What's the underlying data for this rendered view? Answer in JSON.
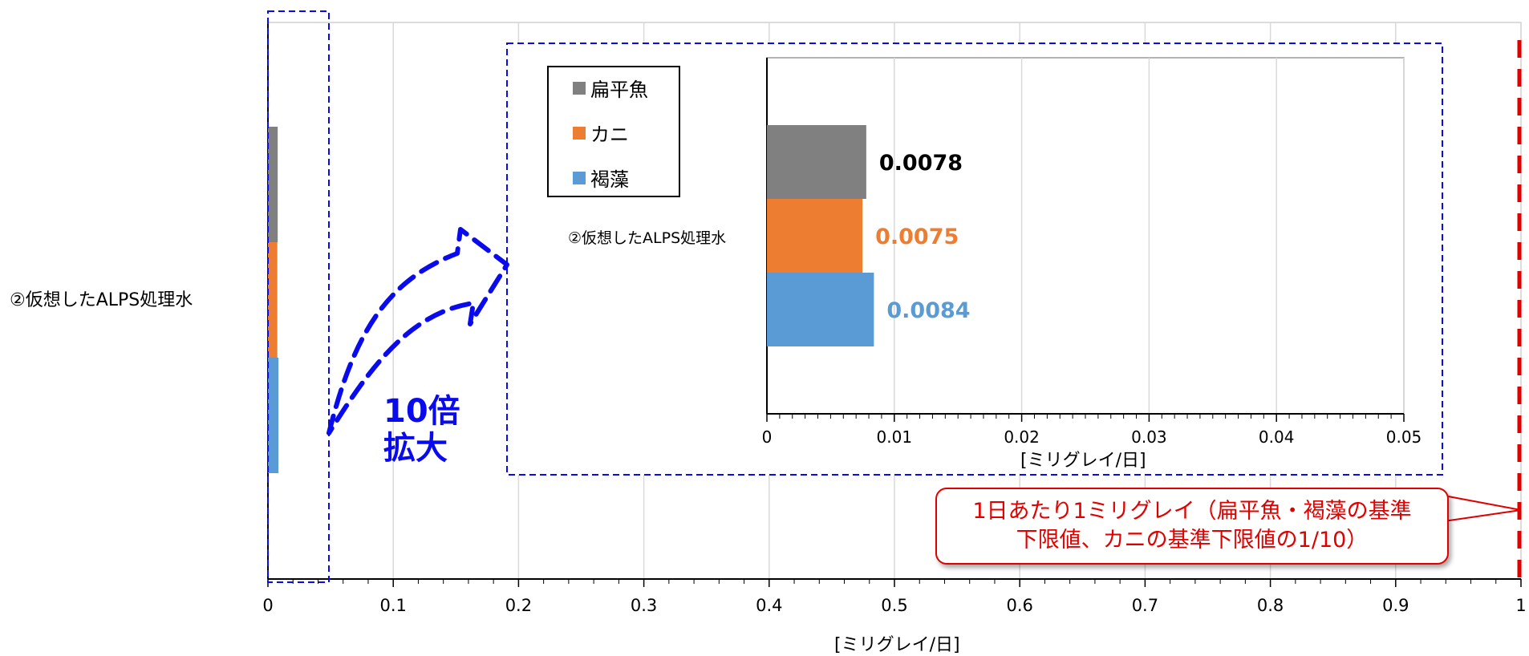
{
  "colors": {
    "flatfish": "#808080",
    "crab": "#ED7D31",
    "seaweed": "#5B9BD5",
    "zoom_blue": "#0A0AEE",
    "limit_red": "#E00000"
  },
  "chart_data": [
    {
      "type": "bar",
      "orientation": "horizontal",
      "categories": [
        "②仮想したALPS処理水"
      ],
      "series": [
        {
          "name": "扁平魚",
          "values": [
            0.0078
          ]
        },
        {
          "name": "カニ",
          "values": [
            0.0075
          ]
        },
        {
          "name": "褐藻",
          "values": [
            0.0084
          ]
        }
      ],
      "xlabel": "[ミリグレイ/日]",
      "xlim": [
        0,
        1
      ],
      "xticks": [
        "0",
        "0.1",
        "0.2",
        "0.3",
        "0.4",
        "0.5",
        "0.6",
        "0.7",
        "0.8",
        "0.9",
        "1"
      ],
      "grid": true,
      "reference_line": {
        "value": 1,
        "style": "dashed",
        "color": "#E00000"
      }
    },
    {
      "type": "bar",
      "orientation": "horizontal",
      "categories": [
        "②仮想したALPS処理水"
      ],
      "series": [
        {
          "name": "扁平魚",
          "values": [
            0.0078
          ],
          "data_label": "0.0078"
        },
        {
          "name": "カニ",
          "values": [
            0.0075
          ],
          "data_label": "0.0075"
        },
        {
          "name": "褐藻",
          "values": [
            0.0084
          ],
          "data_label": "0.0084"
        }
      ],
      "xlabel": "[ミリグレイ/日]",
      "xlim": [
        0,
        0.05
      ],
      "xticks": [
        "0",
        "0.01",
        "0.02",
        "0.03",
        "0.04",
        "0.05"
      ],
      "grid": true,
      "legend": "top-left"
    }
  ],
  "zoom_label": {
    "line1": "10倍",
    "line2": "拡大"
  },
  "callout": {
    "line1": "1日あたり1ミリグレイ（扁平魚・褐藻の基準",
    "line2": "下限値、カニの基準下限値の1/10）"
  },
  "legend": {
    "items": [
      "扁平魚",
      "カニ",
      "褐藻"
    ]
  }
}
